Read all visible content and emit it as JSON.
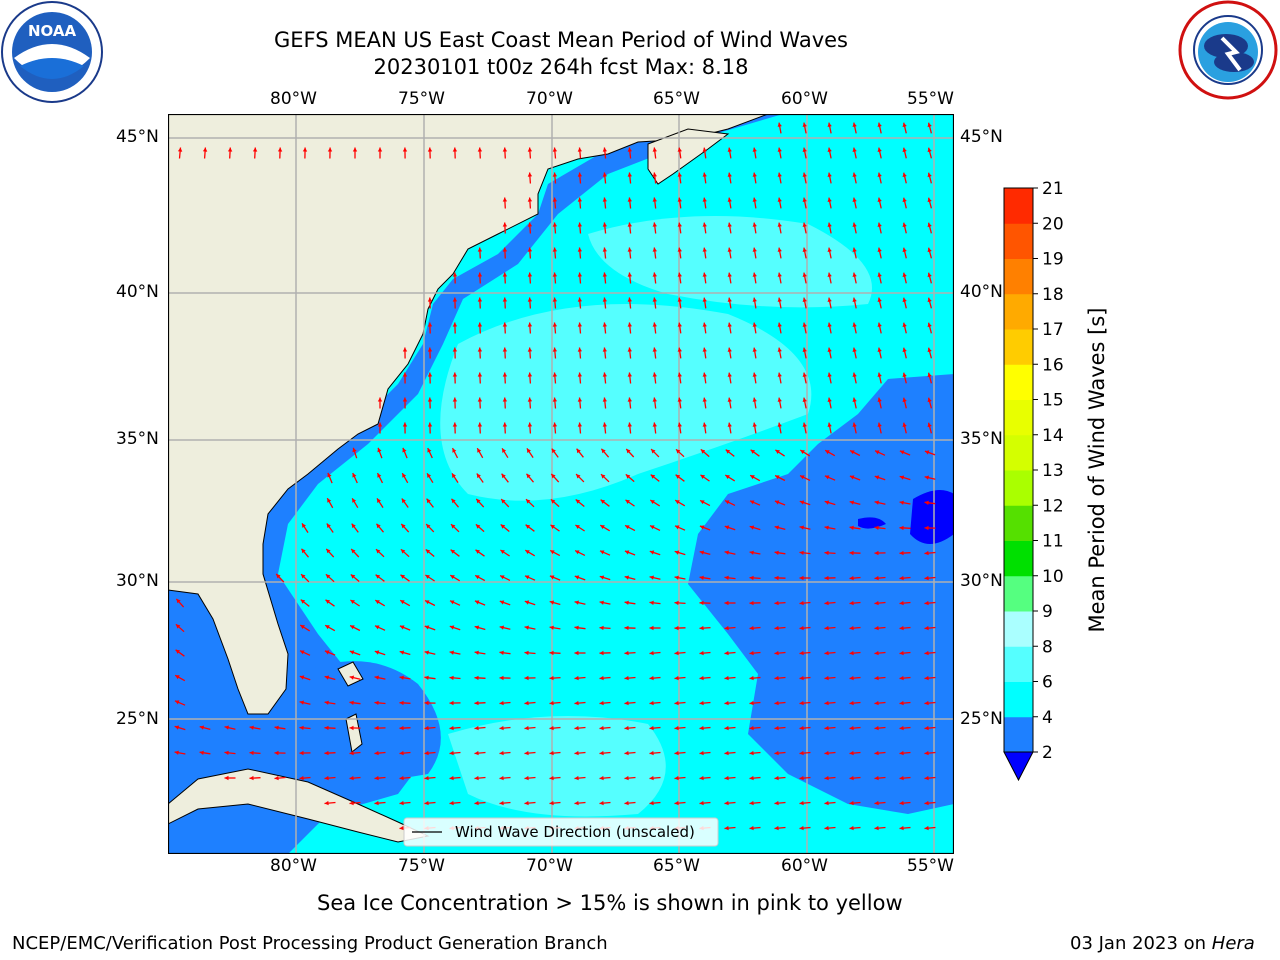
{
  "header": {
    "title_line1": "GEFS MEAN US East Coast Mean Period of Wind Waves",
    "title_line2": "20230101 t00z 264h fcst   Max: 8.18"
  },
  "logos": {
    "noaa_text": "NOAA",
    "noaa_ring_text": "NATIONAL OCEANIC AND ATMOSPHERIC ADMINISTRATION · U.S. DEPARTMENT OF COMMERCE",
    "nws_ring_text": "NATIONAL WEATHER SERVICE"
  },
  "map": {
    "lon_labels": [
      "80°W",
      "75°W",
      "70°W",
      "65°W",
      "60°W",
      "55°W"
    ],
    "lat_labels": [
      "45°N",
      "40°N",
      "35°N",
      "30°N",
      "25°N"
    ],
    "legend_label": "Wind Wave Direction (unscaled)",
    "colors": {
      "land": "#eeeedd",
      "sea_2_4": "#1e80ff",
      "sea_4_6": "#00ffff",
      "sea_6_8": "#55ffff",
      "sea_8_9": "#aaffff",
      "sea_below_2": "#0000ff",
      "arrow": "#ff0000",
      "grid": "#b0b0b0"
    }
  },
  "colorbar": {
    "label": "Mean Period of Wind Waves [s]",
    "ticks": [
      "2",
      "4",
      "6",
      "8",
      "9",
      "10",
      "11",
      "12",
      "13",
      "14",
      "15",
      "16",
      "17",
      "18",
      "19",
      "20",
      "21"
    ],
    "bands": [
      {
        "from": "2",
        "to": "4",
        "color": "#1e80ff"
      },
      {
        "from": "4",
        "to": "6",
        "color": "#00ffff"
      },
      {
        "from": "6",
        "to": "8",
        "color": "#55ffff"
      },
      {
        "from": "8",
        "to": "9",
        "color": "#aaffff"
      },
      {
        "from": "9",
        "to": "10",
        "color": "#55ff80"
      },
      {
        "from": "10",
        "to": "11",
        "color": "#00e000"
      },
      {
        "from": "11",
        "to": "12",
        "color": "#55e000"
      },
      {
        "from": "12",
        "to": "13",
        "color": "#aaff00"
      },
      {
        "from": "13",
        "to": "14",
        "color": "#d4ff00"
      },
      {
        "from": "14",
        "to": "15",
        "color": "#e8ff00"
      },
      {
        "from": "15",
        "to": "16",
        "color": "#ffff00"
      },
      {
        "from": "16",
        "to": "17",
        "color": "#ffcc00"
      },
      {
        "from": "17",
        "to": "18",
        "color": "#ffaa00"
      },
      {
        "from": "18",
        "to": "19",
        "color": "#ff8000"
      },
      {
        "from": "19",
        "to": "20",
        "color": "#ff5500"
      },
      {
        "from": "20",
        "to": "21",
        "color": "#ff2a00"
      }
    ],
    "under_color": "#0000ff",
    "top_color": "#ff0000"
  },
  "footer": {
    "ice_note": "Sea Ice Concentration > 15% is shown in pink to yellow",
    "credit": "NCEP/EMC/Verification Post Processing Product Generation Branch",
    "date": "03 Jan 2023 on ",
    "machine": "Hera"
  }
}
